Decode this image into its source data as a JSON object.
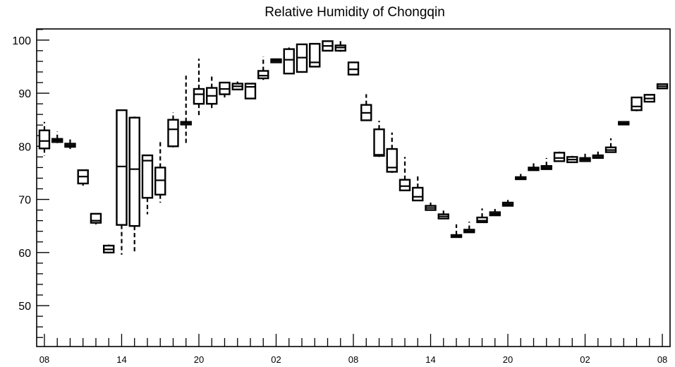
{
  "chart_data": {
    "type": "box",
    "title": "Relative Humidity of Chongqin",
    "xlabel": "",
    "ylabel": "",
    "ylim": [
      42.3,
      102.1
    ],
    "y_major_ticks": [
      50,
      60,
      70,
      80,
      90,
      100
    ],
    "y_minor_step": 2,
    "x_tick_labels": [
      "08",
      "14",
      "20",
      "02",
      "08",
      "14",
      "20",
      "02",
      "08"
    ],
    "x_tick_positions": [
      0,
      6,
      12,
      18,
      24,
      30,
      36,
      42,
      48
    ],
    "x_range": [
      -0.6,
      48.6
    ],
    "grid": false,
    "legend": "none",
    "series": [
      {
        "x": 0,
        "whisker_low": 78.2,
        "q1": 79.6,
        "median": 81.0,
        "q3": 83.0,
        "whisker_high": 84.6
      },
      {
        "x": 1,
        "whisker_low": 80.6,
        "q1": 80.8,
        "median": 81.1,
        "q3": 81.4,
        "whisker_high": 82.8
      },
      {
        "x": 2,
        "whisker_low": 79.5,
        "q1": 79.9,
        "median": 80.2,
        "q3": 80.5,
        "whisker_high": 81.8
      },
      {
        "x": 3,
        "whisker_low": 72.6,
        "q1": 73.0,
        "median": 74.3,
        "q3": 75.5,
        "whisker_high": 75.5
      },
      {
        "x": 4,
        "whisker_low": 65.3,
        "q1": 65.6,
        "median": 66.0,
        "q3": 67.3,
        "whisker_high": 67.4
      },
      {
        "x": 5,
        "whisker_low": 60.0,
        "q1": 60.0,
        "median": 60.6,
        "q3": 61.3,
        "whisker_high": 61.5
      },
      {
        "x": 6,
        "whisker_low": 59.6,
        "q1": 65.2,
        "median": 76.2,
        "q3": 86.8,
        "whisker_high": 86.9
      },
      {
        "x": 7,
        "whisker_low": 59.9,
        "q1": 65.0,
        "median": 75.7,
        "q3": 85.4,
        "whisker_high": 85.6
      },
      {
        "x": 8,
        "whisker_low": 67.2,
        "q1": 70.3,
        "median": 77.3,
        "q3": 78.3,
        "whisker_high": 78.3
      },
      {
        "x": 9,
        "whisker_low": 69.4,
        "q1": 70.9,
        "median": 73.6,
        "q3": 76.0,
        "whisker_high": 81.0
      },
      {
        "x": 10,
        "whisker_low": 79.8,
        "q1": 80.0,
        "median": 83.2,
        "q3": 85.0,
        "whisker_high": 86.4
      },
      {
        "x": 11,
        "whisker_low": 80.3,
        "q1": 84.1,
        "median": 84.4,
        "q3": 84.6,
        "whisker_high": 93.3
      },
      {
        "x": 12,
        "whisker_low": 85.5,
        "q1": 88.0,
        "median": 89.8,
        "q3": 90.8,
        "whisker_high": 96.5
      },
      {
        "x": 13,
        "whisker_low": 86.9,
        "q1": 88.0,
        "median": 89.5,
        "q3": 91.0,
        "whisker_high": 93.6
      },
      {
        "x": 14,
        "whisker_low": 89.2,
        "q1": 89.8,
        "median": 90.8,
        "q3": 92.0,
        "whisker_high": 92.0
      },
      {
        "x": 15,
        "whisker_low": 90.6,
        "q1": 90.7,
        "median": 91.3,
        "q3": 91.8,
        "whisker_high": 92.2
      },
      {
        "x": 16,
        "whisker_low": 89.0,
        "q1": 89.0,
        "median": 91.2,
        "q3": 91.8,
        "whisker_high": 91.8
      },
      {
        "x": 17,
        "whisker_low": 92.5,
        "q1": 92.8,
        "median": 93.3,
        "q3": 94.2,
        "whisker_high": 96.9
      },
      {
        "x": 18,
        "whisker_low": 95.7,
        "q1": 95.8,
        "median": 96.1,
        "q3": 96.4,
        "whisker_high": 96.5
      },
      {
        "x": 19,
        "whisker_low": 93.6,
        "q1": 93.7,
        "median": 96.3,
        "q3": 98.3,
        "whisker_high": 98.6
      },
      {
        "x": 20,
        "whisker_low": 94.0,
        "q1": 94.0,
        "median": 96.7,
        "q3": 99.2,
        "whisker_high": 99.3
      },
      {
        "x": 21,
        "whisker_low": 94.9,
        "q1": 95.0,
        "median": 95.8,
        "q3": 99.3,
        "whisker_high": 99.3
      },
      {
        "x": 22,
        "whisker_low": 97.9,
        "q1": 98.0,
        "median": 98.9,
        "q3": 99.8,
        "whisker_high": 99.9
      },
      {
        "x": 23,
        "whisker_low": 97.8,
        "q1": 98.0,
        "median": 98.6,
        "q3": 99.0,
        "whisker_high": 99.9
      },
      {
        "x": 24,
        "whisker_low": 93.5,
        "q1": 93.5,
        "median": 94.5,
        "q3": 95.8,
        "whisker_high": 95.8
      },
      {
        "x": 25,
        "whisker_low": 84.9,
        "q1": 84.9,
        "median": 86.3,
        "q3": 87.8,
        "whisker_high": 89.8
      },
      {
        "x": 26,
        "whisker_low": 78.0,
        "q1": 78.2,
        "median": 78.4,
        "q3": 83.2,
        "whisker_high": 84.8
      },
      {
        "x": 27,
        "whisker_low": 75.0,
        "q1": 75.2,
        "median": 76.0,
        "q3": 79.5,
        "whisker_high": 82.6
      },
      {
        "x": 28,
        "whisker_low": 71.6,
        "q1": 71.7,
        "median": 72.5,
        "q3": 73.7,
        "whisker_high": 78.0
      },
      {
        "x": 29,
        "whisker_low": 69.7,
        "q1": 69.8,
        "median": 70.5,
        "q3": 72.2,
        "whisker_high": 74.8
      },
      {
        "x": 30,
        "whisker_low": 67.9,
        "q1": 68.0,
        "median": 68.4,
        "q3": 68.8,
        "whisker_high": 69.4
      },
      {
        "x": 31,
        "whisker_low": 66.3,
        "q1": 66.4,
        "median": 66.8,
        "q3": 67.2,
        "whisker_high": 67.9
      },
      {
        "x": 32,
        "whisker_low": 62.8,
        "q1": 62.9,
        "median": 63.1,
        "q3": 63.3,
        "whisker_high": 65.3
      },
      {
        "x": 33,
        "whisker_low": 63.7,
        "q1": 63.8,
        "median": 64.0,
        "q3": 64.3,
        "whisker_high": 65.8
      },
      {
        "x": 34,
        "whisker_low": 65.6,
        "q1": 65.7,
        "median": 66.0,
        "q3": 66.6,
        "whisker_high": 68.3
      },
      {
        "x": 35,
        "whisker_low": 66.9,
        "q1": 67.0,
        "median": 67.3,
        "q3": 67.6,
        "whisker_high": 68.2
      },
      {
        "x": 36,
        "whisker_low": 68.7,
        "q1": 68.8,
        "median": 69.1,
        "q3": 69.4,
        "whisker_high": 69.9
      },
      {
        "x": 37,
        "whisker_low": 73.7,
        "q1": 73.8,
        "median": 74.0,
        "q3": 74.2,
        "whisker_high": 74.8
      },
      {
        "x": 38,
        "whisker_low": 75.4,
        "q1": 75.5,
        "median": 75.7,
        "q3": 76.0,
        "whisker_high": 76.8
      },
      {
        "x": 39,
        "whisker_low": 75.6,
        "q1": 75.7,
        "median": 76.0,
        "q3": 76.3,
        "whisker_high": 77.8
      },
      {
        "x": 40,
        "whisker_low": 77.1,
        "q1": 77.2,
        "median": 77.8,
        "q3": 78.8,
        "whisker_high": 79.0
      },
      {
        "x": 41,
        "whisker_low": 76.9,
        "q1": 77.0,
        "median": 77.5,
        "q3": 78.0,
        "whisker_high": 78.2
      },
      {
        "x": 42,
        "whisker_low": 77.1,
        "q1": 77.2,
        "median": 77.5,
        "q3": 77.8,
        "whisker_high": 78.8
      },
      {
        "x": 43,
        "whisker_low": 77.7,
        "q1": 77.8,
        "median": 78.0,
        "q3": 78.3,
        "whisker_high": 79.0
      },
      {
        "x": 44,
        "whisker_low": 78.8,
        "q1": 78.9,
        "median": 79.3,
        "q3": 79.8,
        "whisker_high": 81.5
      },
      {
        "x": 45,
        "whisker_low": 84.0,
        "q1": 84.1,
        "median": 84.3,
        "q3": 84.6,
        "whisker_high": 84.7
      },
      {
        "x": 46,
        "whisker_low": 86.6,
        "q1": 86.8,
        "median": 87.5,
        "q3": 89.2,
        "whisker_high": 89.3
      },
      {
        "x": 47,
        "whisker_low": 88.3,
        "q1": 88.4,
        "median": 89.0,
        "q3": 89.7,
        "whisker_high": 89.8
      },
      {
        "x": 48,
        "whisker_low": 90.8,
        "q1": 90.9,
        "median": 91.3,
        "q3": 91.7,
        "whisker_high": 91.8
      }
    ]
  }
}
